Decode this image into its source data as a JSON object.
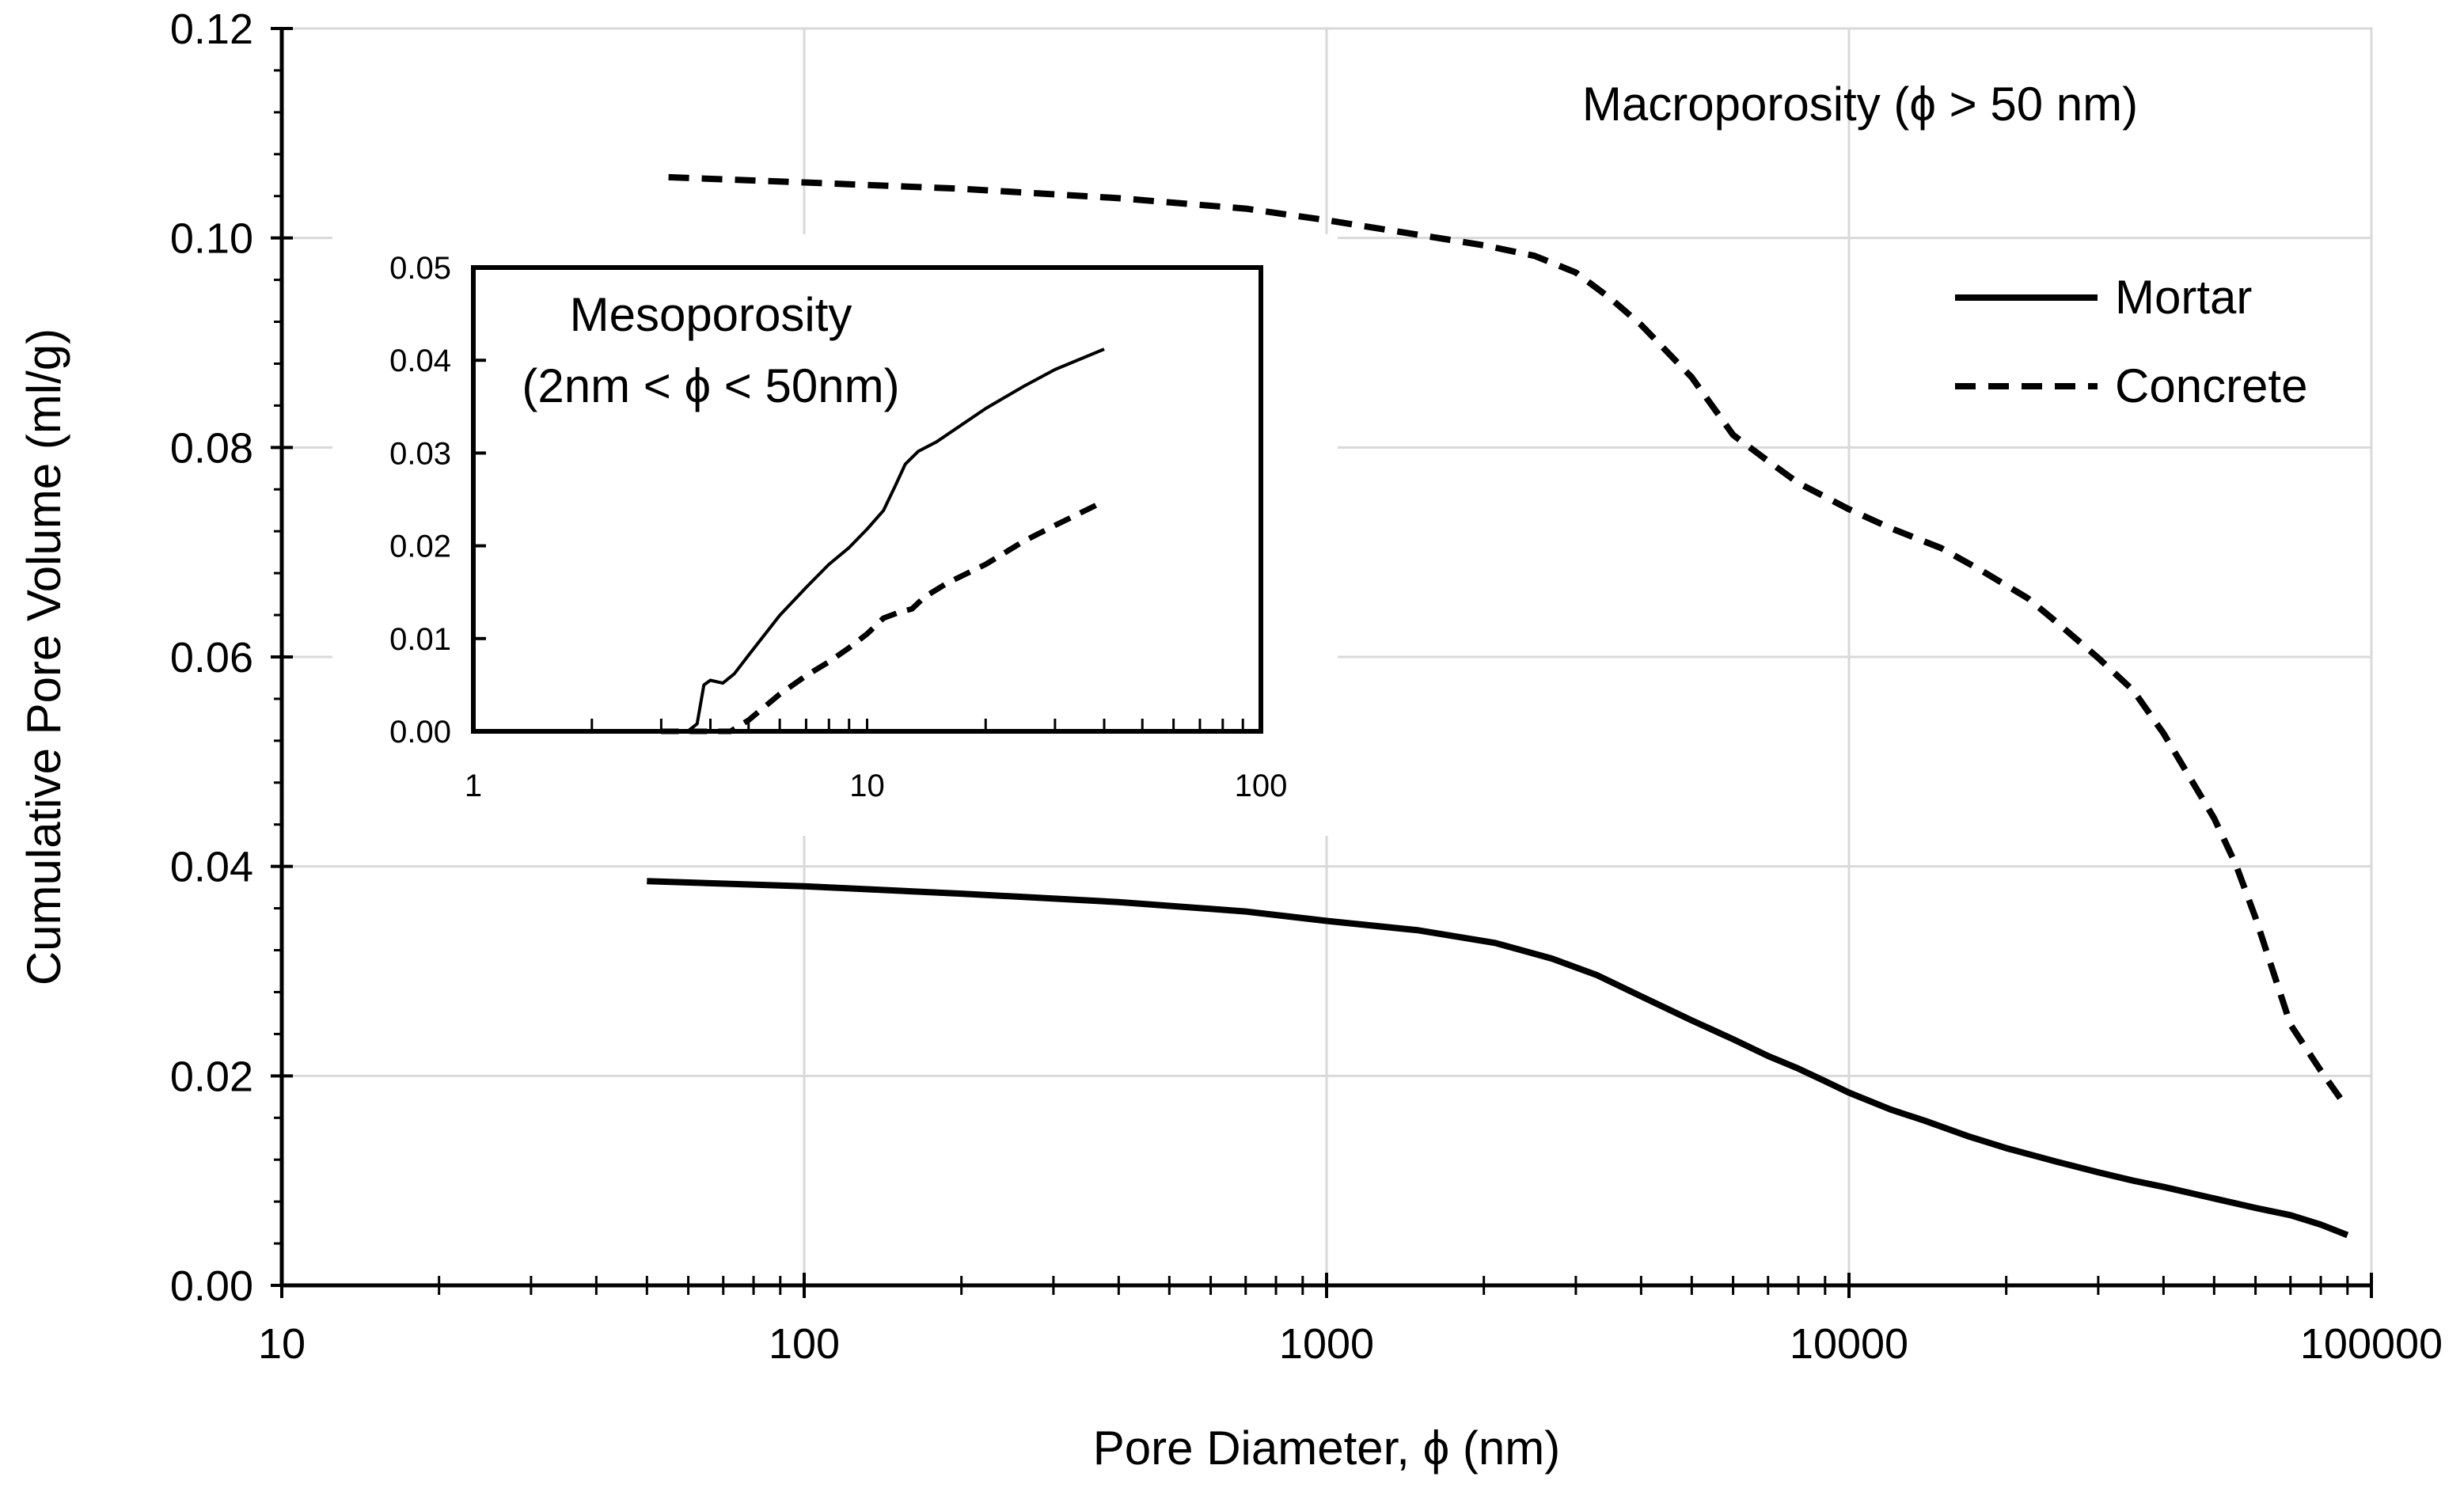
{
  "chart_data": [
    {
      "type": "line",
      "id": "main",
      "xscale": "log",
      "xlim": [
        10,
        100000
      ],
      "ylim": [
        0,
        0.12
      ],
      "xticks": [
        "10",
        "100",
        "1000",
        "10000",
        "100000"
      ],
      "yticks": [
        "0.00",
        "0.02",
        "0.04",
        "0.06",
        "0.08",
        "0.10",
        "0.12"
      ],
      "xlabel": "Pore Diameter, ϕ (nm)",
      "ylabel": "Cumulative Pore Volume (ml/g)",
      "annotation": "Macroporosity (ϕ > 50 nm)",
      "legend": [
        "Mortar",
        "Concrete"
      ],
      "legend_position": "right",
      "grid": true,
      "series": [
        {
          "name": "Mortar",
          "style": "solid",
          "x": [
            50,
            100,
            200,
            400,
            700,
            1000,
            1500,
            2100,
            2700,
            3300,
            4000,
            5000,
            6000,
            7000,
            8000,
            9000,
            10000,
            12000,
            14000,
            17000,
            20000,
            25000,
            30000,
            35000,
            40000,
            50000,
            60000,
            70000,
            80000,
            90000
          ],
          "y": [
            0.0386,
            0.0381,
            0.0374,
            0.0366,
            0.0357,
            0.0348,
            0.0339,
            0.0327,
            0.0312,
            0.0296,
            0.0276,
            0.0253,
            0.0235,
            0.0219,
            0.0207,
            0.0195,
            0.0184,
            0.0168,
            0.0157,
            0.0142,
            0.0131,
            0.0118,
            0.0108,
            0.01,
            0.0094,
            0.0083,
            0.0074,
            0.0067,
            0.0058,
            0.0048
          ]
        },
        {
          "name": "Concrete",
          "style": "dashed",
          "x": [
            55,
            100,
            200,
            400,
            700,
            1000,
            1500,
            2000,
            2500,
            3000,
            3500,
            4000,
            5000,
            6000,
            7000,
            8000,
            10000,
            12000,
            15000,
            18000,
            22000,
            25000,
            30000,
            35000,
            40000,
            50000,
            55000,
            60000,
            70000,
            80000,
            90000
          ],
          "y": [
            0.1058,
            0.1053,
            0.1047,
            0.1038,
            0.1028,
            0.1017,
            0.1003,
            0.0993,
            0.0983,
            0.0967,
            0.0942,
            0.0917,
            0.0867,
            0.0812,
            0.0787,
            0.0766,
            0.0741,
            0.0723,
            0.0704,
            0.0682,
            0.0656,
            0.0633,
            0.0599,
            0.0568,
            0.0527,
            0.0446,
            0.0402,
            0.0351,
            0.0249,
            0.0205,
            0.0169
          ]
        }
      ]
    },
    {
      "type": "line",
      "id": "inset",
      "xscale": "log",
      "xlim": [
        1,
        100
      ],
      "ylim": [
        0,
        0.05
      ],
      "xticks": [
        "1",
        "10",
        "100"
      ],
      "yticks": [
        "0.00",
        "0.01",
        "0.02",
        "0.03",
        "0.04",
        "0.05"
      ],
      "annotation_lines": [
        "Mesoporosity",
        "(2nm < ϕ < 50nm)"
      ],
      "series": [
        {
          "name": "Mortar",
          "style": "solid",
          "x": [
            3.0,
            3.5,
            3.7,
            3.85,
            4.0,
            4.3,
            4.6,
            5.0,
            6.0,
            7.0,
            8.0,
            9.0,
            10.0,
            11.0,
            11.8,
            12.5,
            13.5,
            15,
            20,
            25,
            30,
            40
          ],
          "y": [
            0.0,
            0.0,
            0.0008,
            0.005,
            0.0055,
            0.0052,
            0.0062,
            0.0082,
            0.0125,
            0.0155,
            0.018,
            0.0198,
            0.0218,
            0.0238,
            0.0265,
            0.0288,
            0.0302,
            0.0312,
            0.0348,
            0.0372,
            0.039,
            0.0412
          ]
        },
        {
          "name": "Concrete",
          "style": "dashed",
          "x": [
            3.0,
            4.0,
            4.5,
            5.0,
            6.0,
            7.0,
            8.0,
            9.0,
            10.0,
            11.0,
            12.0,
            13.0,
            14.0,
            16.0,
            20.0,
            25.0,
            30.0,
            40.0
          ],
          "y": [
            0.0,
            0.0,
            0.0,
            0.0012,
            0.004,
            0.006,
            0.0075,
            0.009,
            0.0105,
            0.0122,
            0.0128,
            0.0132,
            0.0145,
            0.016,
            0.018,
            0.0205,
            0.0222,
            0.0248
          ]
        }
      ]
    }
  ]
}
